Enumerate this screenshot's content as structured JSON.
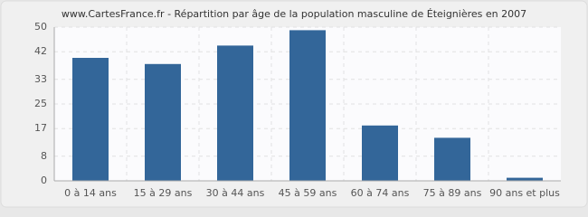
{
  "chart_data": {
    "type": "bar",
    "title": "www.CartesFrance.fr - Répartition par âge de la population masculine de Éteignières en 2007",
    "categories": [
      "0 à 14 ans",
      "15 à 29 ans",
      "30 à 44 ans",
      "45 à 59 ans",
      "60 à 74 ans",
      "75 à 89 ans",
      "90 ans et plus"
    ],
    "values": [
      40,
      38,
      44,
      49,
      18,
      14,
      1
    ],
    "color": "#336699",
    "ylim": [
      0,
      50
    ],
    "yticks": [
      0,
      8,
      17,
      25,
      33,
      42,
      50
    ],
    "grid": true
  }
}
